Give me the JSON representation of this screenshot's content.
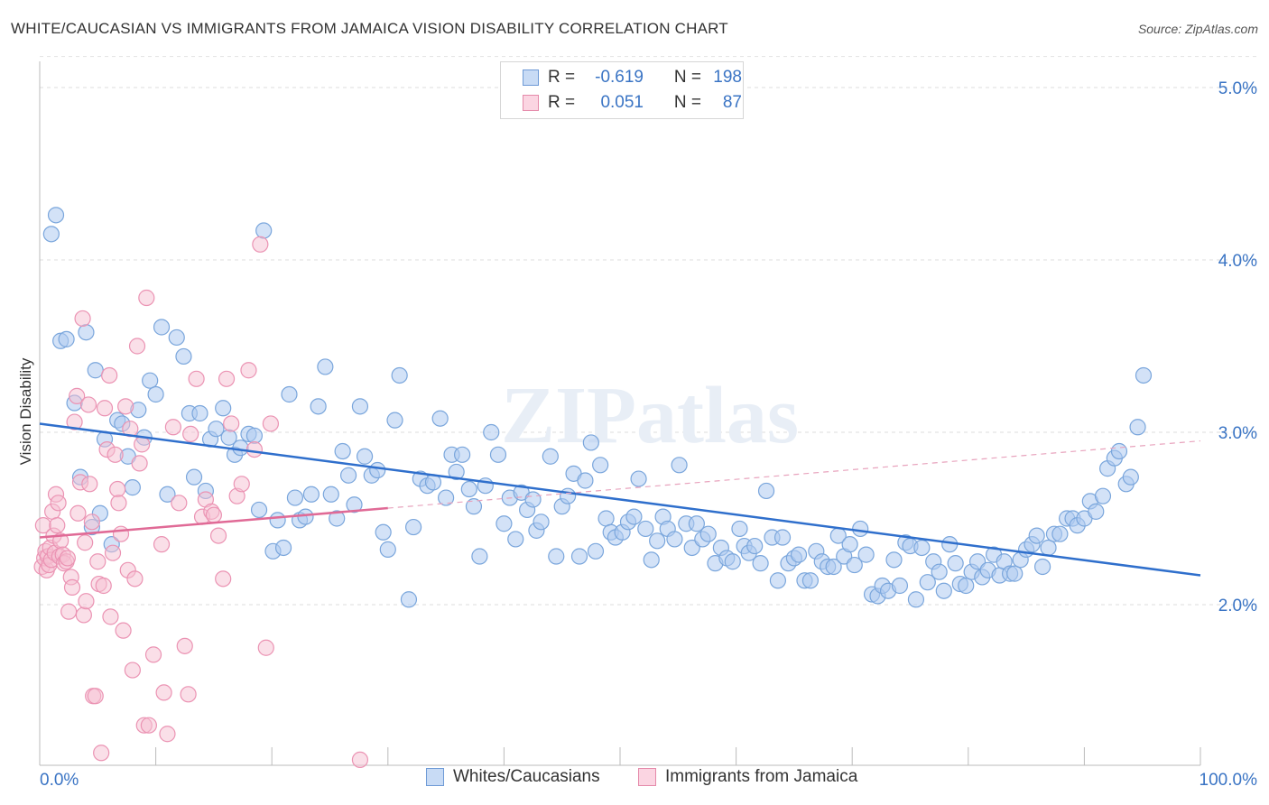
{
  "title": "WHITE/CAUCASIAN VS IMMIGRANTS FROM JAMAICA VISION DISABILITY CORRELATION CHART",
  "source": "Source: ZipAtlas.com",
  "watermark": "ZIPatlas",
  "legend": {
    "series1": {
      "r_label": "R =",
      "r_value": "-0.619",
      "n_label": "N =",
      "n_value": "198"
    },
    "series2": {
      "r_label": "R =",
      "r_value": "0.051",
      "n_label": "N =",
      "n_value": "87"
    }
  },
  "colors": {
    "blue": "#3a74c4",
    "blue_fill": "#aecbf0",
    "pink": "#e06a96",
    "pink_fill": "#f5bfd1"
  },
  "chart_data": {
    "type": "scatter",
    "ylabel": "Vision Disability",
    "x_tick_labels": [
      "0.0%",
      "100.0%"
    ],
    "y_tick_labels": [
      "5.0%",
      "4.0%",
      "3.0%",
      "2.0%"
    ],
    "xlim": [
      0,
      100
    ],
    "ylim": [
      1.0,
      5.2
    ],
    "series": [
      {
        "name": "Whites/Caucasians",
        "color": "#3a74c4",
        "trend": {
          "x": [
            0,
            100
          ],
          "y": [
            3.05,
            2.17
          ]
        },
        "points": [
          [
            1.0,
            4.15
          ],
          [
            1.4,
            4.26
          ],
          [
            1.8,
            3.53
          ],
          [
            2.3,
            3.54
          ],
          [
            3.0,
            3.17
          ],
          [
            3.5,
            2.74
          ],
          [
            4.0,
            3.58
          ],
          [
            4.5,
            2.45
          ],
          [
            4.8,
            3.36
          ],
          [
            5.2,
            2.53
          ],
          [
            5.6,
            2.96
          ],
          [
            6.2,
            2.35
          ],
          [
            6.7,
            3.07
          ],
          [
            7.1,
            3.05
          ],
          [
            7.6,
            2.86
          ],
          [
            8.0,
            2.68
          ],
          [
            8.5,
            3.13
          ],
          [
            9.0,
            2.97
          ],
          [
            9.5,
            3.3
          ],
          [
            10.0,
            3.22
          ],
          [
            10.5,
            3.61
          ],
          [
            11.0,
            2.64
          ],
          [
            11.8,
            3.55
          ],
          [
            12.4,
            3.44
          ],
          [
            12.9,
            3.11
          ],
          [
            13.3,
            2.74
          ],
          [
            13.8,
            3.11
          ],
          [
            14.3,
            2.66
          ],
          [
            14.7,
            2.96
          ],
          [
            15.2,
            3.02
          ],
          [
            15.8,
            3.14
          ],
          [
            16.3,
            2.97
          ],
          [
            16.8,
            2.87
          ],
          [
            17.3,
            2.91
          ],
          [
            18.0,
            2.99
          ],
          [
            18.5,
            2.98
          ],
          [
            18.9,
            2.55
          ],
          [
            19.3,
            4.17
          ],
          [
            20.1,
            2.31
          ],
          [
            20.5,
            2.49
          ],
          [
            21.0,
            2.33
          ],
          [
            21.5,
            3.22
          ],
          [
            22.0,
            2.62
          ],
          [
            22.4,
            2.49
          ],
          [
            22.9,
            2.51
          ],
          [
            23.4,
            2.64
          ],
          [
            24.0,
            3.15
          ],
          [
            24.6,
            3.38
          ],
          [
            25.1,
            2.64
          ],
          [
            25.6,
            2.5
          ],
          [
            26.1,
            2.89
          ],
          [
            26.6,
            2.75
          ],
          [
            27.1,
            2.58
          ],
          [
            27.6,
            3.15
          ],
          [
            28.0,
            2.86
          ],
          [
            28.6,
            2.75
          ],
          [
            29.1,
            2.78
          ],
          [
            29.6,
            2.42
          ],
          [
            30.0,
            2.32
          ],
          [
            30.6,
            3.07
          ],
          [
            31.0,
            3.33
          ],
          [
            31.8,
            2.03
          ],
          [
            32.2,
            2.45
          ],
          [
            32.8,
            2.73
          ],
          [
            33.4,
            2.69
          ],
          [
            33.9,
            2.71
          ],
          [
            34.5,
            3.08
          ],
          [
            35.0,
            2.62
          ],
          [
            35.5,
            2.87
          ],
          [
            35.9,
            2.77
          ],
          [
            36.4,
            2.87
          ],
          [
            37.0,
            2.67
          ],
          [
            37.4,
            2.57
          ],
          [
            37.9,
            2.28
          ],
          [
            38.4,
            2.69
          ],
          [
            38.9,
            3.0
          ],
          [
            39.5,
            2.87
          ],
          [
            40.0,
            2.47
          ],
          [
            40.5,
            2.62
          ],
          [
            41.0,
            2.38
          ],
          [
            41.5,
            2.65
          ],
          [
            42.0,
            2.55
          ],
          [
            42.5,
            2.61
          ],
          [
            42.8,
            2.43
          ],
          [
            43.2,
            2.48
          ],
          [
            44.0,
            2.86
          ],
          [
            44.5,
            2.28
          ],
          [
            45.0,
            2.57
          ],
          [
            45.5,
            2.63
          ],
          [
            46.0,
            2.76
          ],
          [
            46.5,
            2.28
          ],
          [
            47.0,
            2.72
          ],
          [
            47.5,
            2.94
          ],
          [
            47.9,
            2.31
          ],
          [
            48.3,
            2.81
          ],
          [
            48.8,
            2.5
          ],
          [
            49.2,
            2.42
          ],
          [
            49.6,
            2.39
          ],
          [
            50.2,
            2.42
          ],
          [
            50.7,
            2.48
          ],
          [
            51.2,
            2.51
          ],
          [
            51.6,
            2.73
          ],
          [
            52.2,
            2.44
          ],
          [
            52.7,
            2.26
          ],
          [
            53.2,
            2.37
          ],
          [
            53.7,
            2.51
          ],
          [
            54.1,
            2.44
          ],
          [
            54.7,
            2.38
          ],
          [
            55.1,
            2.81
          ],
          [
            55.7,
            2.47
          ],
          [
            56.2,
            2.33
          ],
          [
            56.6,
            2.47
          ],
          [
            57.1,
            2.38
          ],
          [
            57.6,
            2.41
          ],
          [
            58.2,
            2.24
          ],
          [
            58.7,
            2.33
          ],
          [
            59.2,
            2.27
          ],
          [
            59.7,
            2.25
          ],
          [
            60.3,
            2.44
          ],
          [
            60.7,
            2.34
          ],
          [
            61.1,
            2.3
          ],
          [
            61.6,
            2.34
          ],
          [
            62.1,
            2.24
          ],
          [
            62.6,
            2.66
          ],
          [
            63.1,
            2.39
          ],
          [
            63.6,
            2.14
          ],
          [
            64.0,
            2.39
          ],
          [
            64.5,
            2.24
          ],
          [
            65.0,
            2.27
          ],
          [
            65.4,
            2.29
          ],
          [
            65.9,
            2.14
          ],
          [
            66.4,
            2.14
          ],
          [
            66.9,
            2.31
          ],
          [
            67.4,
            2.25
          ],
          [
            67.9,
            2.22
          ],
          [
            68.4,
            2.22
          ],
          [
            68.8,
            2.4
          ],
          [
            69.3,
            2.28
          ],
          [
            69.8,
            2.35
          ],
          [
            70.2,
            2.23
          ],
          [
            70.7,
            2.44
          ],
          [
            71.2,
            2.29
          ],
          [
            71.7,
            2.06
          ],
          [
            72.2,
            2.05
          ],
          [
            72.6,
            2.11
          ],
          [
            73.1,
            2.08
          ],
          [
            73.6,
            2.26
          ],
          [
            74.1,
            2.11
          ],
          [
            74.6,
            2.36
          ],
          [
            75.0,
            2.34
          ],
          [
            75.5,
            2.03
          ],
          [
            76.0,
            2.33
          ],
          [
            76.5,
            2.13
          ],
          [
            77.0,
            2.25
          ],
          [
            77.5,
            2.19
          ],
          [
            77.9,
            2.08
          ],
          [
            78.4,
            2.35
          ],
          [
            78.9,
            2.24
          ],
          [
            79.3,
            2.12
          ],
          [
            79.8,
            2.11
          ],
          [
            80.3,
            2.19
          ],
          [
            80.8,
            2.25
          ],
          [
            81.2,
            2.16
          ],
          [
            81.7,
            2.2
          ],
          [
            82.2,
            2.29
          ],
          [
            82.7,
            2.17
          ],
          [
            83.1,
            2.25
          ],
          [
            83.6,
            2.18
          ],
          [
            84.0,
            2.18
          ],
          [
            84.5,
            2.26
          ],
          [
            85.0,
            2.32
          ],
          [
            85.5,
            2.35
          ],
          [
            85.9,
            2.4
          ],
          [
            86.4,
            2.22
          ],
          [
            86.9,
            2.33
          ],
          [
            87.4,
            2.41
          ],
          [
            87.9,
            2.41
          ],
          [
            88.5,
            2.5
          ],
          [
            89.0,
            2.5
          ],
          [
            89.4,
            2.46
          ],
          [
            90.0,
            2.5
          ],
          [
            90.5,
            2.6
          ],
          [
            91.0,
            2.54
          ],
          [
            91.6,
            2.63
          ],
          [
            92.0,
            2.79
          ],
          [
            92.6,
            2.85
          ],
          [
            93.0,
            2.89
          ],
          [
            93.6,
            2.7
          ],
          [
            94.0,
            2.74
          ],
          [
            94.6,
            3.03
          ],
          [
            95.1,
            3.33
          ]
        ]
      },
      {
        "name": "Immigrants from Jamaica",
        "color": "#e06a96",
        "trend": {
          "x": [
            0,
            30
          ],
          "y": [
            2.39,
            2.56
          ]
        },
        "trend_dashed": {
          "x": [
            30,
            100
          ],
          "y": [
            2.56,
            2.95
          ]
        },
        "points": [
          [
            0.2,
            2.22
          ],
          [
            0.3,
            2.46
          ],
          [
            0.4,
            2.27
          ],
          [
            0.5,
            2.31
          ],
          [
            0.6,
            2.2
          ],
          [
            0.7,
            2.28
          ],
          [
            0.8,
            2.23
          ],
          [
            0.9,
            2.33
          ],
          [
            1.0,
            2.26
          ],
          [
            1.1,
            2.54
          ],
          [
            1.2,
            2.4
          ],
          [
            1.3,
            2.3
          ],
          [
            1.4,
            2.64
          ],
          [
            1.5,
            2.46
          ],
          [
            1.6,
            2.59
          ],
          [
            1.7,
            2.28
          ],
          [
            1.8,
            2.37
          ],
          [
            2.0,
            2.29
          ],
          [
            2.1,
            2.24
          ],
          [
            2.3,
            2.25
          ],
          [
            2.4,
            2.27
          ],
          [
            2.5,
            1.96
          ],
          [
            2.7,
            2.16
          ],
          [
            2.8,
            2.1
          ],
          [
            3.0,
            3.06
          ],
          [
            3.2,
            3.21
          ],
          [
            3.3,
            2.53
          ],
          [
            3.5,
            2.71
          ],
          [
            3.7,
            3.66
          ],
          [
            3.8,
            1.94
          ],
          [
            3.9,
            2.36
          ],
          [
            4.0,
            2.02
          ],
          [
            4.2,
            3.16
          ],
          [
            4.3,
            2.7
          ],
          [
            4.5,
            2.48
          ],
          [
            4.6,
            1.47
          ],
          [
            4.8,
            1.47
          ],
          [
            5.0,
            2.25
          ],
          [
            5.1,
            2.12
          ],
          [
            5.3,
            1.14
          ],
          [
            5.5,
            2.11
          ],
          [
            5.6,
            3.14
          ],
          [
            5.8,
            2.9
          ],
          [
            6.0,
            3.33
          ],
          [
            6.1,
            1.93
          ],
          [
            6.3,
            2.3
          ],
          [
            6.5,
            2.87
          ],
          [
            6.7,
            2.67
          ],
          [
            6.8,
            2.59
          ],
          [
            7.0,
            2.41
          ],
          [
            7.2,
            1.85
          ],
          [
            7.4,
            3.15
          ],
          [
            7.6,
            2.2
          ],
          [
            7.8,
            3.02
          ],
          [
            8.0,
            1.62
          ],
          [
            8.2,
            2.15
          ],
          [
            8.4,
            3.5
          ],
          [
            8.6,
            2.82
          ],
          [
            8.8,
            2.93
          ],
          [
            9.0,
            1.3
          ],
          [
            9.2,
            3.78
          ],
          [
            9.4,
            1.3
          ],
          [
            9.8,
            1.71
          ],
          [
            10.5,
            2.35
          ],
          [
            10.7,
            1.49
          ],
          [
            11.0,
            1.25
          ],
          [
            11.5,
            3.03
          ],
          [
            12.0,
            2.59
          ],
          [
            12.5,
            1.76
          ],
          [
            12.8,
            1.48
          ],
          [
            13.0,
            2.99
          ],
          [
            13.5,
            3.31
          ],
          [
            14.0,
            2.51
          ],
          [
            14.3,
            2.61
          ],
          [
            14.8,
            2.54
          ],
          [
            15.0,
            2.52
          ],
          [
            15.4,
            2.4
          ],
          [
            15.8,
            2.15
          ],
          [
            16.1,
            3.31
          ],
          [
            16.5,
            3.05
          ],
          [
            17.0,
            2.63
          ],
          [
            17.4,
            2.7
          ],
          [
            18.0,
            3.36
          ],
          [
            18.5,
            2.9
          ],
          [
            19.0,
            4.09
          ],
          [
            19.5,
            1.75
          ],
          [
            19.9,
            3.05
          ],
          [
            27.6,
            1.1
          ]
        ]
      }
    ]
  }
}
